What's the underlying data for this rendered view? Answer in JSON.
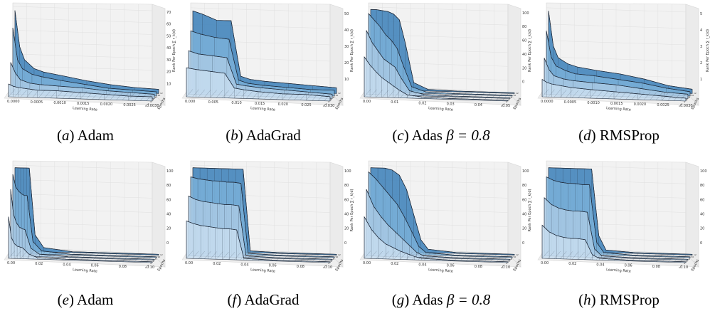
{
  "chart_data": [
    {
      "type": "surface3d",
      "panel": "a",
      "title": "Adam",
      "xlabel": "Learning Rate",
      "ylabel": "Epochs",
      "zlabel": "Rank Per Epoch ∑ r_k(d)",
      "x_ticks": [
        "0.0000",
        "0.0005",
        "0.0010",
        "0.0015",
        "0.0020",
        "0.0025",
        "0.0030"
      ],
      "z_ticks": [
        "10",
        "20",
        "30",
        "40",
        "50",
        "60",
        "70"
      ],
      "zlim": [
        0,
        75
      ],
      "profiles": [
        {
          "x": [
            0.0,
            0.0001,
            0.0002,
            0.0004,
            0.0006,
            0.001,
            0.0015,
            0.002,
            0.0025,
            0.003
          ],
          "z": [
            74,
            40,
            28,
            20,
            17,
            14,
            10,
            7,
            5,
            4
          ]
        },
        {
          "x": [
            0.0,
            0.0001,
            0.0002,
            0.0004,
            0.0006,
            0.001,
            0.0015,
            0.002,
            0.0025,
            0.003
          ],
          "z": [
            60,
            30,
            22,
            17,
            15,
            12,
            9,
            6,
            5,
            4
          ]
        },
        {
          "x": [
            0.0,
            0.0001,
            0.0002,
            0.0004,
            0.0006,
            0.001,
            0.0015,
            0.002,
            0.0025,
            0.003
          ],
          "z": [
            30,
            20,
            14,
            11,
            10,
            9,
            8,
            6,
            5,
            4
          ]
        },
        {
          "x": [
            0.0,
            0.0001,
            0.0002,
            0.0004,
            0.0006,
            0.001,
            0.0015,
            0.002,
            0.0025,
            0.003
          ],
          "z": [
            12,
            10,
            9,
            8,
            7,
            7,
            6,
            5,
            4,
            4
          ]
        }
      ]
    },
    {
      "type": "surface3d",
      "panel": "b",
      "title": "AdaGrad",
      "xlabel": "Learning Rate",
      "ylabel": "Epochs",
      "zlabel": "Rank Per Epoch ∑ r_k(d)",
      "x_ticks": [
        "0.000",
        "0.005",
        "0.010",
        "0.015",
        "0.020",
        "0.025",
        "0.030"
      ],
      "z_ticks": [
        "10",
        "20",
        "30",
        "40",
        "50"
      ],
      "zlim": [
        0,
        55
      ],
      "profiles": [
        {
          "x": [
            0.0,
            0.002,
            0.005,
            0.008,
            0.01,
            0.012,
            0.015,
            0.02,
            0.025,
            0.03
          ],
          "z": [
            54,
            52,
            48,
            48,
            10,
            8,
            7,
            6,
            5,
            4
          ]
        },
        {
          "x": [
            0.0,
            0.002,
            0.005,
            0.008,
            0.01,
            0.012,
            0.015,
            0.02,
            0.025,
            0.03
          ],
          "z": [
            42,
            40,
            38,
            37,
            9,
            7,
            6,
            5,
            4,
            4
          ]
        },
        {
          "x": [
            0.0,
            0.002,
            0.005,
            0.008,
            0.01,
            0.012,
            0.015,
            0.02,
            0.025,
            0.03
          ],
          "z": [
            30,
            28,
            27,
            26,
            8,
            7,
            6,
            5,
            4,
            3
          ]
        },
        {
          "x": [
            0.0,
            0.002,
            0.005,
            0.008,
            0.01,
            0.012,
            0.015,
            0.02,
            0.025,
            0.03
          ],
          "z": [
            20,
            19,
            18,
            17,
            7,
            6,
            5,
            4,
            4,
            3
          ]
        }
      ]
    },
    {
      "type": "surface3d",
      "panel": "c",
      "title": "Adas",
      "title_math": "β = 0.8",
      "xlabel": "Learning Rate",
      "ylabel": "Epochs",
      "zlabel": "Rank Per Epoch ∑ r_k(d)",
      "x_ticks": [
        "0.00",
        "0.01",
        "0.02",
        "0.03",
        "0.04",
        "0.05"
      ],
      "z_ticks": [
        "0",
        "20",
        "40",
        "60",
        "80",
        "100"
      ],
      "zlim": [
        0,
        100
      ],
      "profiles": [
        {
          "x": [
            0.0,
            0.002,
            0.004,
            0.006,
            0.008,
            0.01,
            0.012,
            0.015,
            0.02,
            0.03,
            0.04,
            0.05
          ],
          "z": [
            100,
            100,
            99,
            98,
            95,
            88,
            60,
            10,
            2,
            1,
            1,
            1
          ]
        },
        {
          "x": [
            0.0,
            0.002,
            0.004,
            0.006,
            0.008,
            0.01,
            0.012,
            0.015,
            0.02,
            0.03,
            0.04,
            0.05
          ],
          "z": [
            98,
            90,
            82,
            72,
            65,
            55,
            35,
            8,
            2,
            1,
            1,
            1
          ]
        },
        {
          "x": [
            0.0,
            0.002,
            0.004,
            0.006,
            0.008,
            0.01,
            0.012,
            0.015,
            0.02,
            0.03,
            0.04,
            0.05
          ],
          "z": [
            80,
            65,
            55,
            45,
            40,
            35,
            22,
            6,
            2,
            1,
            1,
            1
          ]
        },
        {
          "x": [
            0.0,
            0.002,
            0.004,
            0.006,
            0.008,
            0.01,
            0.012,
            0.015,
            0.02,
            0.03,
            0.04,
            0.05
          ],
          "z": [
            50,
            40,
            32,
            25,
            20,
            15,
            10,
            4,
            2,
            1,
            1,
            1
          ]
        }
      ]
    },
    {
      "type": "surface3d",
      "panel": "d",
      "title": "RMSProp",
      "xlabel": "Learning Rate",
      "ylabel": "Epochs",
      "zlabel": "Rank Per Epoch ∑ r_k(d)",
      "x_ticks": [
        "0.0000",
        "0.0005",
        "0.0010",
        "0.0015",
        "0.0020",
        "0.0025",
        "0.0030"
      ],
      "z_ticks": [
        "1",
        "2",
        "3",
        "4",
        "5"
      ],
      "zlim": [
        0,
        5.5
      ],
      "profiles": [
        {
          "x": [
            0.0,
            0.0001,
            0.0002,
            0.0004,
            0.0006,
            0.001,
            0.0015,
            0.002,
            0.0025,
            0.003
          ],
          "z": [
            5.4,
            3.0,
            2.2,
            1.8,
            1.6,
            1.4,
            1.2,
            0.9,
            0.5,
            0.3
          ]
        },
        {
          "x": [
            0.0,
            0.0001,
            0.0002,
            0.0004,
            0.0006,
            0.001,
            0.0015,
            0.002,
            0.0025,
            0.003
          ],
          "z": [
            4.2,
            2.4,
            1.8,
            1.5,
            1.3,
            1.2,
            1.0,
            0.8,
            0.5,
            0.3
          ]
        },
        {
          "x": [
            0.0,
            0.0001,
            0.0002,
            0.0004,
            0.0006,
            0.001,
            0.0015,
            0.002,
            0.0025,
            0.003
          ],
          "z": [
            2.5,
            1.7,
            1.3,
            1.1,
            1.0,
            0.9,
            0.8,
            0.6,
            0.4,
            0.3
          ]
        },
        {
          "x": [
            0.0,
            0.0001,
            0.0002,
            0.0004,
            0.0006,
            0.001,
            0.0015,
            0.002,
            0.0025,
            0.003
          ],
          "z": [
            1.2,
            1.0,
            0.9,
            0.8,
            0.7,
            0.6,
            0.5,
            0.4,
            0.3,
            0.2
          ]
        }
      ]
    },
    {
      "type": "surface3d",
      "panel": "e",
      "title": "Adam",
      "xlabel": "Learning Rate",
      "ylabel": "Epochs",
      "zlabel": "",
      "x_ticks": [
        "0.00",
        "0.02",
        "0.04",
        "0.06",
        "0.08",
        "0.10"
      ],
      "z_ticks": [
        "0",
        "20",
        "40",
        "60",
        "80",
        "100"
      ],
      "zlim": [
        0,
        100
      ],
      "profiles": [
        {
          "x": [
            0.0,
            0.002,
            0.004,
            0.006,
            0.008,
            0.01,
            0.014,
            0.02,
            0.04,
            0.06,
            0.08,
            0.1
          ],
          "z": [
            100,
            100,
            100,
            100,
            100,
            100,
            20,
            5,
            1,
            1,
            1,
            1
          ]
        },
        {
          "x": [
            0.0,
            0.002,
            0.004,
            0.006,
            0.008,
            0.01,
            0.014,
            0.02,
            0.04,
            0.06,
            0.08,
            0.1
          ],
          "z": [
            95,
            80,
            75,
            72,
            70,
            70,
            15,
            4,
            1,
            1,
            1,
            1
          ]
        },
        {
          "x": [
            0.0,
            0.002,
            0.004,
            0.006,
            0.008,
            0.01,
            0.014,
            0.02,
            0.04,
            0.06,
            0.08,
            0.1
          ],
          "z": [
            80,
            50,
            40,
            35,
            33,
            32,
            10,
            3,
            1,
            1,
            1,
            1
          ]
        },
        {
          "x": [
            0.0,
            0.002,
            0.004,
            0.006,
            0.008,
            0.01,
            0.014,
            0.02,
            0.04,
            0.06,
            0.08,
            0.1
          ],
          "z": [
            50,
            25,
            18,
            15,
            14,
            13,
            6,
            2,
            1,
            1,
            1,
            1
          ]
        }
      ]
    },
    {
      "type": "surface3d",
      "panel": "f",
      "title": "AdaGrad",
      "xlabel": "Learning Rate",
      "ylabel": "Epochs",
      "zlabel": "Rank Per Epoch ∑ r_k(d)",
      "x_ticks": [
        "0.00",
        "0.02",
        "0.04",
        "0.06",
        "0.08",
        "0.10"
      ],
      "z_ticks": [
        "0",
        "20",
        "40",
        "60",
        "80",
        "100"
      ],
      "zlim": [
        0,
        100
      ],
      "profiles": [
        {
          "x": [
            0.0,
            0.005,
            0.01,
            0.015,
            0.02,
            0.025,
            0.03,
            0.035,
            0.04,
            0.06,
            0.08,
            0.1
          ],
          "z": [
            100,
            100,
            100,
            100,
            100,
            100,
            100,
            100,
            2,
            1,
            1,
            1
          ]
        },
        {
          "x": [
            0.0,
            0.005,
            0.01,
            0.015,
            0.02,
            0.025,
            0.03,
            0.035,
            0.04,
            0.06,
            0.08,
            0.1
          ],
          "z": [
            92,
            90,
            89,
            88,
            88,
            87,
            87,
            86,
            2,
            1,
            1,
            1
          ]
        },
        {
          "x": [
            0.0,
            0.005,
            0.01,
            0.015,
            0.02,
            0.025,
            0.03,
            0.035,
            0.04,
            0.06,
            0.08,
            0.1
          ],
          "z": [
            72,
            68,
            66,
            65,
            64,
            63,
            63,
            62,
            2,
            1,
            1,
            1
          ]
        },
        {
          "x": [
            0.0,
            0.005,
            0.01,
            0.015,
            0.02,
            0.025,
            0.03,
            0.035,
            0.04,
            0.06,
            0.08,
            0.1
          ],
          "z": [
            45,
            42,
            40,
            39,
            38,
            37,
            37,
            36,
            2,
            1,
            1,
            1
          ]
        }
      ]
    },
    {
      "type": "surface3d",
      "panel": "g",
      "title": "Adas",
      "title_math": "β = 0.8",
      "xlabel": "Learning Rate",
      "ylabel": "Epochs",
      "zlabel": "Rank Per Epoch ∑ r_k(d)",
      "x_ticks": [
        "0.00",
        "0.02",
        "0.04",
        "0.06",
        "0.08",
        "0.10"
      ],
      "z_ticks": [
        "0",
        "20",
        "40",
        "60",
        "80",
        "100"
      ],
      "zlim": [
        0,
        100
      ],
      "profiles": [
        {
          "x": [
            0.0,
            0.005,
            0.01,
            0.015,
            0.02,
            0.025,
            0.03,
            0.035,
            0.04,
            0.06,
            0.08,
            0.1
          ],
          "z": [
            100,
            100,
            100,
            98,
            92,
            75,
            45,
            15,
            4,
            1,
            1,
            1
          ]
        },
        {
          "x": [
            0.0,
            0.005,
            0.01,
            0.015,
            0.02,
            0.025,
            0.03,
            0.035,
            0.04,
            0.06,
            0.08,
            0.1
          ],
          "z": [
            98,
            90,
            80,
            70,
            60,
            45,
            28,
            10,
            3,
            1,
            1,
            1
          ]
        },
        {
          "x": [
            0.0,
            0.005,
            0.01,
            0.015,
            0.02,
            0.025,
            0.03,
            0.035,
            0.04,
            0.06,
            0.08,
            0.1
          ],
          "z": [
            80,
            60,
            48,
            38,
            30,
            22,
            14,
            6,
            2,
            1,
            1,
            1
          ]
        },
        {
          "x": [
            0.0,
            0.005,
            0.01,
            0.015,
            0.02,
            0.025,
            0.03,
            0.035,
            0.04,
            0.06,
            0.08,
            0.1
          ],
          "z": [
            50,
            35,
            25,
            18,
            14,
            10,
            7,
            4,
            2,
            1,
            1,
            1
          ]
        }
      ]
    },
    {
      "type": "surface3d",
      "panel": "h",
      "title": "RMSProp",
      "xlabel": "Learning Rate",
      "ylabel": "Epochs",
      "zlabel": "",
      "x_ticks": [
        "0.00",
        "0.02",
        "0.04",
        "0.06",
        "0.08",
        "0.10"
      ],
      "z_ticks": [
        "0",
        "20",
        "40",
        "60",
        "80",
        "100"
      ],
      "zlim": [
        0,
        100
      ],
      "profiles": [
        {
          "x": [
            0.0,
            0.005,
            0.01,
            0.015,
            0.02,
            0.025,
            0.03,
            0.035,
            0.04,
            0.06,
            0.08,
            0.1
          ],
          "z": [
            100,
            100,
            100,
            100,
            100,
            100,
            100,
            20,
            3,
            1,
            1,
            1
          ]
        },
        {
          "x": [
            0.0,
            0.005,
            0.01,
            0.015,
            0.02,
            0.025,
            0.03,
            0.035,
            0.04,
            0.06,
            0.08,
            0.1
          ],
          "z": [
            92,
            88,
            86,
            85,
            85,
            84,
            84,
            15,
            3,
            1,
            1,
            1
          ]
        },
        {
          "x": [
            0.0,
            0.005,
            0.01,
            0.015,
            0.02,
            0.025,
            0.03,
            0.035,
            0.04,
            0.06,
            0.08,
            0.1
          ],
          "z": [
            70,
            62,
            58,
            56,
            55,
            55,
            54,
            10,
            2,
            1,
            1,
            1
          ]
        },
        {
          "x": [
            0.0,
            0.005,
            0.01,
            0.015,
            0.02,
            0.025,
            0.03,
            0.035,
            0.04,
            0.06,
            0.08,
            0.1
          ],
          "z": [
            40,
            32,
            28,
            26,
            25,
            25,
            24,
            6,
            2,
            1,
            1,
            1
          ]
        }
      ]
    }
  ],
  "palette": {
    "fill_back": "#3a7fb8",
    "fill_mid": "#7ab0d8",
    "fill_front": "#c6dcee",
    "fill_floor": "#dde9f3",
    "mesh": "#1f2a3a",
    "pane": "#f2f2f2",
    "grid": "#e0e0e0"
  }
}
